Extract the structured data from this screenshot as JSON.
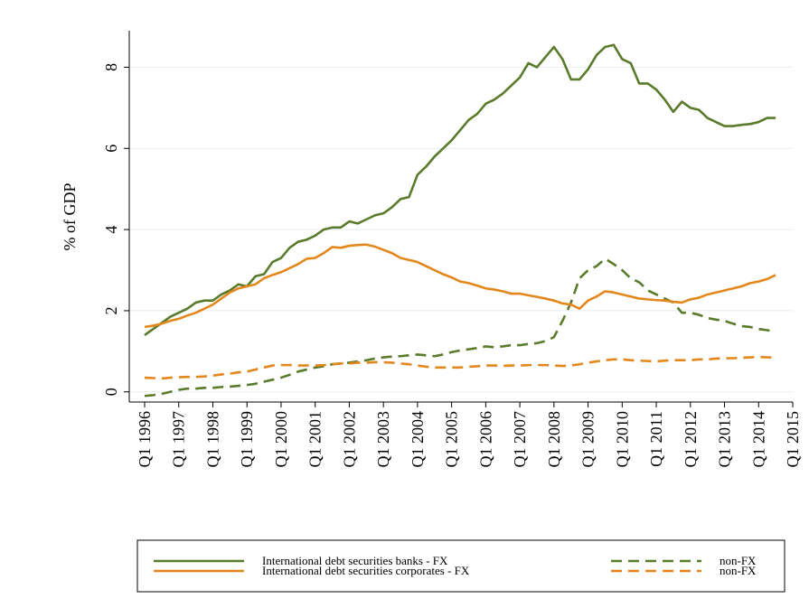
{
  "chart_data": {
    "type": "line",
    "y_label": "% of GDP",
    "ylim": [
      -0.25,
      8.9
    ],
    "yticks": [
      0,
      2,
      4,
      6,
      8
    ],
    "grid": true,
    "legend_position": "bottom",
    "categories": [
      "Q1 1996",
      null,
      null,
      null,
      "Q1 1997",
      null,
      null,
      null,
      "Q1 1998",
      null,
      null,
      null,
      "Q1 1999",
      null,
      null,
      null,
      "Q1 2000",
      null,
      null,
      null,
      "Q1 2001",
      null,
      null,
      null,
      "Q1 2002",
      null,
      null,
      null,
      "Q1 2003",
      null,
      null,
      null,
      "Q1 2004",
      null,
      null,
      null,
      "Q1 2005",
      null,
      null,
      null,
      "Q1 2006",
      null,
      null,
      null,
      "Q1 2007",
      null,
      null,
      null,
      "Q1 2008",
      null,
      null,
      null,
      "Q1 2009",
      null,
      null,
      null,
      "Q1 2010",
      null,
      null,
      null,
      "Q1 2011",
      null,
      null,
      null,
      "Q1 2012",
      null,
      null,
      null,
      "Q1 2013",
      null,
      null,
      null,
      "Q1 2014",
      null,
      null,
      null,
      "Q1 2015"
    ],
    "series": [
      {
        "name": "International debt securities banks - FX",
        "color": "#5b7b2c",
        "dash": false,
        "values": [
          1.4,
          1.55,
          1.7,
          1.85,
          1.95,
          2.05,
          2.2,
          2.25,
          2.25,
          2.4,
          2.5,
          2.65,
          2.6,
          2.85,
          2.9,
          3.2,
          3.3,
          3.55,
          3.7,
          3.75,
          3.85,
          4.0,
          4.05,
          4.05,
          4.2,
          4.15,
          4.25,
          4.35,
          4.4,
          4.55,
          4.75,
          4.8,
          5.35,
          5.55,
          5.8,
          6.0,
          6.2,
          6.45,
          6.7,
          6.85,
          7.1,
          7.2,
          7.35,
          7.55,
          7.75,
          8.1,
          8.0,
          8.25,
          8.5,
          8.2,
          7.7,
          7.7,
          7.95,
          8.3,
          8.5,
          8.55,
          8.2,
          8.1,
          7.6,
          7.6,
          7.45,
          7.2,
          6.9,
          7.15,
          7.0,
          6.95,
          6.75,
          6.65,
          6.55,
          6.55,
          6.58,
          6.6,
          6.65,
          6.75,
          6.75,
          null,
          null
        ]
      },
      {
        "name": "non-FX",
        "color": "#5b7b2c",
        "dash": true,
        "values": [
          -0.1,
          -0.08,
          -0.05,
          0.0,
          0.05,
          0.08,
          0.08,
          0.1,
          0.1,
          0.12,
          0.13,
          0.15,
          0.17,
          0.2,
          0.25,
          0.3,
          0.35,
          0.42,
          0.5,
          0.55,
          0.6,
          0.63,
          0.68,
          0.7,
          0.72,
          0.75,
          0.78,
          0.82,
          0.85,
          0.87,
          0.88,
          0.9,
          0.92,
          0.9,
          0.88,
          0.92,
          0.98,
          1.02,
          1.05,
          1.08,
          1.12,
          1.1,
          1.12,
          1.15,
          1.15,
          1.18,
          1.2,
          1.25,
          1.35,
          1.75,
          2.2,
          2.8,
          3.0,
          3.1,
          3.28,
          3.15,
          3.0,
          2.8,
          2.7,
          2.5,
          2.4,
          2.3,
          2.2,
          1.95,
          1.95,
          1.9,
          1.82,
          1.78,
          1.75,
          1.68,
          1.62,
          1.6,
          1.55,
          1.52,
          1.48,
          null,
          null
        ]
      },
      {
        "name": "International debt securities corporates - FX",
        "color": "#e3871c",
        "dash": false,
        "values": [
          1.6,
          1.63,
          1.68,
          1.75,
          1.8,
          1.88,
          1.95,
          2.05,
          2.15,
          2.3,
          2.45,
          2.55,
          2.6,
          2.65,
          2.8,
          2.88,
          2.95,
          3.05,
          3.15,
          3.28,
          3.3,
          3.42,
          3.57,
          3.55,
          3.6,
          3.62,
          3.63,
          3.58,
          3.5,
          3.42,
          3.3,
          3.25,
          3.2,
          3.1,
          3.0,
          2.9,
          2.82,
          2.72,
          2.68,
          2.62,
          2.55,
          2.52,
          2.48,
          2.42,
          2.42,
          2.38,
          2.34,
          2.3,
          2.25,
          2.18,
          2.15,
          2.05,
          2.25,
          2.35,
          2.48,
          2.45,
          2.4,
          2.35,
          2.3,
          2.28,
          2.26,
          2.25,
          2.22,
          2.2,
          2.28,
          2.32,
          2.4,
          2.45,
          2.5,
          2.55,
          2.6,
          2.68,
          2.72,
          2.78,
          2.88,
          null,
          null
        ]
      },
      {
        "name": "non-FX",
        "color": "#e3871c",
        "dash": true,
        "values": [
          0.35,
          0.34,
          0.33,
          0.35,
          0.36,
          0.37,
          0.37,
          0.38,
          0.4,
          0.43,
          0.45,
          0.48,
          0.5,
          0.55,
          0.6,
          0.65,
          0.66,
          0.66,
          0.65,
          0.65,
          0.65,
          0.66,
          0.68,
          0.7,
          0.7,
          0.72,
          0.72,
          0.73,
          0.73,
          0.72,
          0.7,
          0.68,
          0.65,
          0.62,
          0.6,
          0.6,
          0.6,
          0.6,
          0.62,
          0.63,
          0.65,
          0.65,
          0.64,
          0.65,
          0.65,
          0.66,
          0.66,
          0.66,
          0.65,
          0.64,
          0.65,
          0.68,
          0.72,
          0.75,
          0.78,
          0.8,
          0.8,
          0.78,
          0.77,
          0.76,
          0.75,
          0.77,
          0.78,
          0.78,
          0.78,
          0.8,
          0.8,
          0.82,
          0.83,
          0.83,
          0.84,
          0.85,
          0.86,
          0.85,
          0.85,
          null,
          null
        ]
      }
    ]
  }
}
